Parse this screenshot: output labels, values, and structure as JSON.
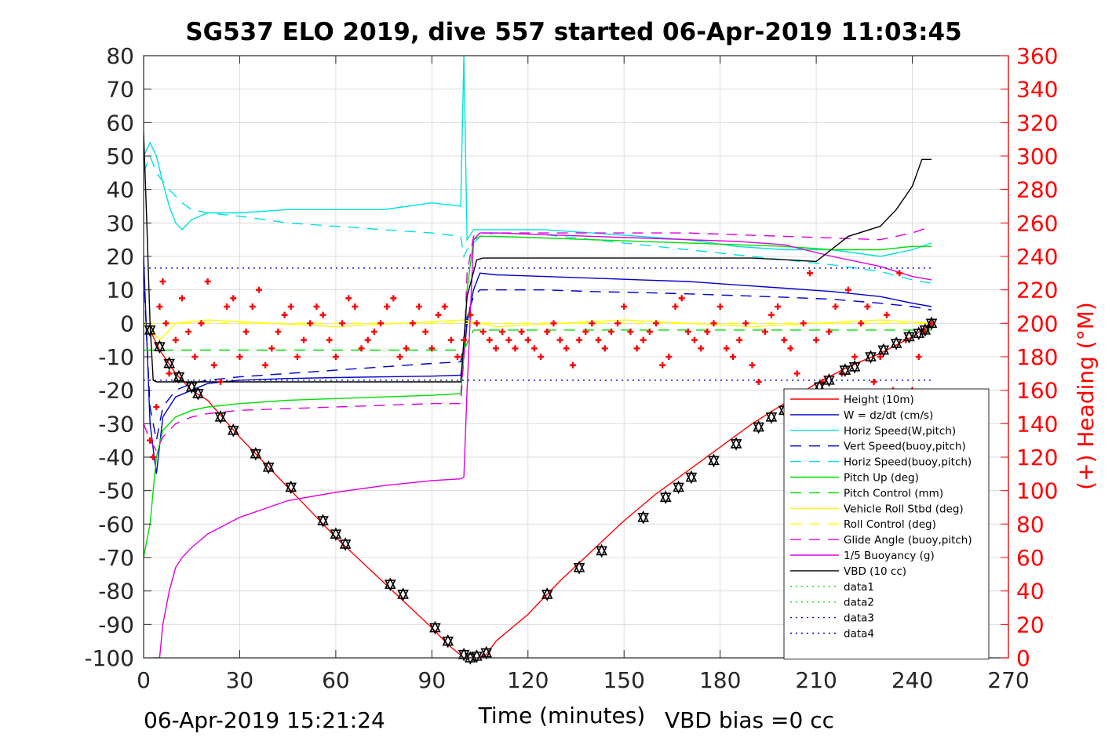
{
  "title": "SG537 ELO 2019, dive 557 started 06-Apr-2019 11:03:45",
  "footer": {
    "timestamp": "06-Apr-2019 15:21:24",
    "vbd_bias": "VBD bias =0 cc"
  },
  "chart_data": {
    "type": "line",
    "title": "SG537 ELO 2019, dive 557 started 06-Apr-2019 11:03:45",
    "xlabel": "Time (minutes)",
    "ylabel": "",
    "y2label": "(+) Heading (°M)",
    "xlim": [
      0,
      270
    ],
    "ylim": [
      -100,
      80
    ],
    "y2lim": [
      0,
      360
    ],
    "xticks": [
      "0",
      "30",
      "60",
      "90",
      "120",
      "150",
      "180",
      "210",
      "240",
      "270"
    ],
    "yticks": [
      "80",
      "70",
      "60",
      "50",
      "40",
      "30",
      "20",
      "10",
      "0",
      "-10",
      "-20",
      "-30",
      "-40",
      "-50",
      "-60",
      "-70",
      "-80",
      "-90",
      "-100"
    ],
    "y2ticks": [
      "360",
      "340",
      "320",
      "300",
      "280",
      "260",
      "240",
      "220",
      "200",
      "180",
      "160",
      "140",
      "120",
      "100",
      "80",
      "60",
      "40",
      "20",
      "0"
    ],
    "grid": true,
    "legend_position": "bottom-right",
    "colors": {
      "right_axis": "#ff0000",
      "heading_marker": "#ff0000",
      "depth_marker": "#000000"
    },
    "series": [
      {
        "name": "Height (10m)",
        "color": "#ff0000",
        "style": "solid",
        "x": [
          0,
          2,
          5,
          10,
          15,
          20,
          30,
          40,
          50,
          60,
          70,
          80,
          90,
          95,
          100,
          102,
          104,
          107,
          110,
          120,
          130,
          140,
          150,
          160,
          170,
          180,
          190,
          200,
          210,
          220,
          230,
          240,
          246
        ],
        "y": [
          0,
          -2,
          -8,
          -15,
          -20,
          -23,
          -34,
          -44,
          -54,
          -64,
          -73,
          -82,
          -91,
          -96,
          -100,
          -100,
          -100,
          -99,
          -95,
          -87,
          -77,
          -68,
          -59,
          -51,
          -44,
          -37,
          -30,
          -24,
          -18,
          -13,
          -9,
          -4,
          0
        ]
      },
      {
        "name": "W = dz/dt (cm/s)",
        "color": "#0000cc",
        "style": "solid",
        "x": [
          0,
          2,
          4,
          6,
          10,
          15,
          20,
          30,
          45,
          60,
          75,
          90,
          99,
          100,
          101,
          103,
          105,
          110,
          125,
          140,
          155,
          170,
          185,
          200,
          215,
          230,
          240,
          246
        ],
        "y": [
          20,
          -30,
          -45,
          -28,
          -22,
          -20,
          -18,
          -17,
          -16.5,
          -16.2,
          -16,
          -15.8,
          -15.5,
          -10,
          0,
          10,
          15,
          14.5,
          14,
          13.5,
          13,
          12.5,
          11.5,
          10.5,
          9.5,
          8,
          6,
          5
        ]
      },
      {
        "name": "Horiz Speed(W,pitch)",
        "color": "#00e0e0",
        "style": "solid",
        "x": [
          0,
          2,
          4,
          6,
          8,
          10,
          12,
          15,
          20,
          30,
          45,
          60,
          75,
          90,
          99,
          100,
          101,
          103,
          105,
          110,
          125,
          140,
          155,
          170,
          185,
          200,
          215,
          230,
          240,
          246
        ],
        "y": [
          50,
          54,
          50,
          42,
          35,
          30,
          28,
          31,
          33,
          33,
          34,
          34,
          34,
          36,
          35,
          80,
          25,
          28,
          28,
          28,
          28,
          27,
          26,
          25,
          23,
          22,
          22,
          20,
          22,
          24
        ]
      },
      {
        "name": "Vert Speed(buoy,pitch)",
        "color": "#0000cc",
        "style": "dashed",
        "x": [
          0,
          2,
          4,
          6,
          10,
          15,
          20,
          30,
          45,
          60,
          75,
          90,
          99,
          100,
          101,
          103,
          105,
          110,
          125,
          140,
          155,
          170,
          185,
          200,
          215,
          230,
          240,
          246
        ],
        "y": [
          15,
          -25,
          -35,
          -25,
          -20,
          -18,
          -17,
          -16,
          -15,
          -14,
          -13,
          -12,
          -11.5,
          -6,
          2,
          8,
          10,
          10,
          10,
          9.5,
          9.2,
          8.8,
          8.3,
          7.8,
          7.2,
          6,
          5,
          4
        ]
      },
      {
        "name": "Horiz Speed(buoy,pitch)",
        "color": "#00e0e0",
        "style": "dashed",
        "x": [
          0,
          2,
          4,
          8,
          12,
          15,
          20,
          30,
          45,
          60,
          75,
          90,
          99,
          100,
          101,
          103,
          105,
          110,
          125,
          140,
          155,
          170,
          185,
          200,
          215,
          230,
          240,
          246
        ],
        "y": [
          45,
          50,
          45,
          40,
          36,
          34,
          33,
          32,
          30,
          29,
          28,
          27,
          26,
          20,
          22,
          24,
          26,
          27,
          26.5,
          25,
          23.5,
          22,
          20.5,
          19,
          17.5,
          15.5,
          13,
          12
        ]
      },
      {
        "name": "Pitch Up (deg)",
        "color": "#00dd00",
        "style": "solid",
        "x": [
          0,
          2,
          4,
          6,
          10,
          15,
          20,
          30,
          45,
          60,
          75,
          90,
          99,
          100,
          101,
          103,
          105,
          110,
          125,
          140,
          155,
          170,
          185,
          200,
          215,
          230,
          240,
          246
        ],
        "y": [
          -70,
          -60,
          -40,
          -32,
          -28,
          -26,
          -25,
          -24,
          -23,
          -22.5,
          -22,
          -21.5,
          -21,
          -10,
          10,
          25,
          26,
          26,
          25.5,
          25,
          24.5,
          24,
          23.5,
          23,
          22,
          22,
          23,
          23
        ]
      },
      {
        "name": "Pitch Control (mm)",
        "color": "#00dd00",
        "style": "dashed",
        "x": [
          0,
          2,
          10,
          30,
          60,
          90,
          100,
          103,
          130,
          160,
          190,
          220,
          246
        ],
        "y": [
          -8,
          -8,
          -8,
          -8,
          -8,
          -8,
          -8,
          -2,
          -2,
          -2,
          -2,
          -2,
          -2
        ]
      },
      {
        "name": "Vehicle Roll Stbd (deg)",
        "color": "#ffff00",
        "style": "solid",
        "x": [
          0,
          5,
          10,
          20,
          40,
          60,
          80,
          100,
          110,
          130,
          150,
          170,
          190,
          210,
          230,
          246
        ],
        "y": [
          0,
          -5,
          0,
          1,
          0,
          -1,
          0,
          1,
          -1,
          0,
          1,
          0,
          -1,
          0,
          1,
          0
        ]
      },
      {
        "name": "Roll Control (deg)",
        "color": "#ffff00",
        "style": "dashed",
        "x": [
          0,
          10,
          30,
          60,
          90,
          100,
          120,
          150,
          180,
          210,
          246
        ],
        "y": [
          0,
          0,
          0,
          0,
          0,
          0,
          0,
          0,
          0,
          0,
          0
        ]
      },
      {
        "name": "Glide Angle (buoy,pitch)",
        "color": "#dd00dd",
        "style": "dashed",
        "x": [
          0,
          2,
          4,
          6,
          10,
          15,
          20,
          30,
          45,
          60,
          75,
          90,
          99,
          100,
          101,
          103,
          105,
          110,
          125,
          140,
          155,
          170,
          185,
          200,
          215,
          230,
          240,
          246
        ],
        "y": [
          -30,
          -35,
          -38,
          -34,
          -30,
          -28,
          -27,
          -26,
          -25.5,
          -25,
          -24.5,
          -24,
          -24,
          -10,
          15,
          26,
          27,
          27,
          27,
          27,
          27,
          27,
          26.5,
          26,
          25.5,
          25,
          27,
          29
        ]
      },
      {
        "name": "1/5 Buoyancy (g)",
        "color": "#dd00dd",
        "style": "solid",
        "x": [
          3,
          5,
          6,
          8,
          10,
          12,
          15,
          20,
          30,
          45,
          60,
          75,
          90,
          99,
          100,
          101,
          103,
          105,
          110,
          125,
          140,
          155,
          170,
          185,
          200,
          215,
          230,
          240,
          246
        ],
        "y": [
          -100,
          -100,
          -90,
          -80,
          -73,
          -70,
          -67,
          -63,
          -58,
          -53,
          -50.5,
          -48.5,
          -47,
          -46.5,
          -46,
          -20,
          25,
          27,
          27,
          26.5,
          26,
          25.5,
          25,
          24.5,
          23.5,
          20,
          17,
          14,
          13
        ]
      },
      {
        "name": "VBD (10 cc)",
        "color": "#000000",
        "style": "solid",
        "x": [
          0,
          1,
          2,
          3,
          4,
          10,
          30,
          60,
          90,
          99,
          100,
          101,
          104,
          106,
          110,
          130,
          150,
          170,
          190,
          210,
          220,
          230,
          235,
          240,
          243,
          246
        ],
        "y": [
          57,
          30,
          0,
          -17,
          -17.5,
          -17.5,
          -17.5,
          -17.5,
          -17.5,
          -17.5,
          -5,
          8,
          19,
          19.5,
          19.5,
          19.5,
          19.5,
          19.5,
          19.5,
          18.5,
          26,
          29,
          34,
          41,
          49,
          49
        ]
      },
      {
        "name": "data1",
        "color": "#00dd00",
        "style": "dotted",
        "x": [],
        "y": []
      },
      {
        "name": "data2",
        "color": "#00dd00",
        "style": "dotted",
        "x": [],
        "y": []
      },
      {
        "name": "data3",
        "color": "#0000cc",
        "style": "dotted",
        "x": [
          0,
          246
        ],
        "y": [
          16.5,
          16.5
        ]
      },
      {
        "name": "data4",
        "color": "#0000cc",
        "style": "dotted",
        "x": [
          0,
          246
        ],
        "y": [
          -17,
          -17
        ]
      }
    ],
    "depth_markers": {
      "x": [
        2,
        5,
        8,
        11,
        15,
        17,
        24,
        28,
        35,
        39,
        46,
        56,
        60,
        63,
        77,
        81,
        91,
        95,
        100,
        102,
        104,
        107,
        126,
        136,
        143,
        156,
        163,
        167,
        171,
        178,
        185,
        192,
        196,
        200,
        211,
        214,
        219,
        222,
        227,
        231,
        235,
        239,
        242,
        244,
        246
      ],
      "y": [
        -2,
        -7,
        -12,
        -16,
        -19,
        -21,
        -28,
        -32,
        -39,
        -43,
        -49,
        -59,
        -63,
        -66,
        -78,
        -81,
        -91,
        -95,
        -99,
        -100,
        -99.5,
        -98.5,
        -81,
        -73,
        -68,
        -58,
        -52,
        -49,
        -46,
        -41,
        -36,
        -31,
        -28,
        -26,
        -19,
        -17,
        -14,
        -13,
        -10,
        -8,
        -6,
        -4,
        -3,
        -2,
        0
      ]
    },
    "heading_markers": {
      "x": [
        2,
        3,
        4,
        5,
        6,
        7,
        8,
        10,
        12,
        14,
        16,
        18,
        20,
        22,
        24,
        26,
        28,
        30,
        32,
        34,
        36,
        38,
        40,
        42,
        44,
        46,
        48,
        50,
        52,
        54,
        56,
        58,
        60,
        62,
        64,
        66,
        68,
        70,
        72,
        74,
        76,
        78,
        80,
        82,
        84,
        86,
        88,
        90,
        92,
        94,
        96,
        98,
        100,
        102,
        104,
        106,
        108,
        110,
        112,
        114,
        116,
        118,
        120,
        122,
        124,
        126,
        128,
        130,
        132,
        134,
        136,
        138,
        140,
        142,
        144,
        146,
        148,
        150,
        152,
        154,
        156,
        158,
        160,
        162,
        164,
        166,
        168,
        170,
        172,
        174,
        176,
        178,
        180,
        182,
        184,
        186,
        188,
        190,
        192,
        194,
        196,
        198,
        200,
        202,
        204,
        206,
        208,
        210,
        212,
        214,
        216,
        218,
        220,
        222,
        224,
        226,
        228,
        230,
        232,
        234,
        236,
        238,
        240,
        242,
        244,
        246
      ],
      "y": [
        130,
        120,
        150,
        210,
        225,
        200,
        170,
        190,
        215,
        195,
        180,
        200,
        225,
        175,
        165,
        210,
        215,
        180,
        195,
        210,
        220,
        175,
        185,
        195,
        205,
        210,
        180,
        190,
        200,
        210,
        205,
        190,
        180,
        200,
        215,
        210,
        185,
        190,
        195,
        200,
        210,
        215,
        180,
        185,
        200,
        210,
        195,
        185,
        205,
        210,
        190,
        180,
        190,
        205,
        200,
        195,
        190,
        185,
        195,
        190,
        185,
        195,
        190,
        185,
        180,
        195,
        200,
        190,
        185,
        175,
        190,
        195,
        200,
        190,
        185,
        195,
        200,
        210,
        195,
        185,
        190,
        195,
        200,
        175,
        180,
        210,
        215,
        195,
        190,
        185,
        195,
        200,
        210,
        185,
        180,
        190,
        200,
        175,
        165,
        195,
        205,
        210,
        190,
        185,
        170,
        200,
        230,
        190,
        165,
        195,
        210,
        170,
        220,
        180,
        200,
        210,
        165,
        180,
        205,
        160,
        230,
        190,
        160,
        180,
        195,
        200
      ]
    }
  }
}
